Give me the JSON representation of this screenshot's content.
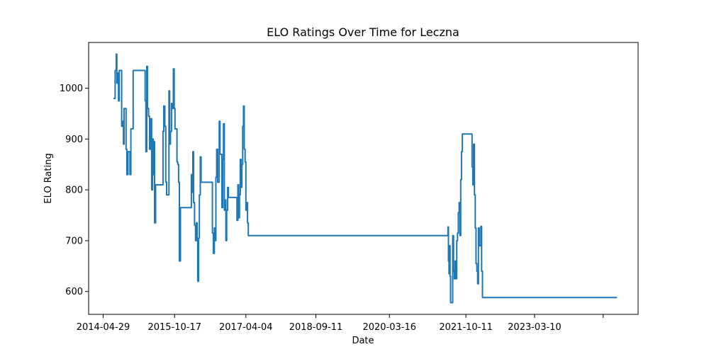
{
  "chart_data": {
    "type": "line",
    "title": "ELO Ratings Over Time for Leczna",
    "xlabel": "Date",
    "ylabel": "ELO Rating",
    "grid": false,
    "x_axis_type": "date",
    "xlim": [
      "2014-01-10",
      "2025-04-25"
    ],
    "ylim": [
      555,
      1090
    ],
    "x_ticks": [
      "2014-04-29",
      "2015-10-17",
      "2017-04-04",
      "2018-09-11",
      "2020-03-16",
      "2021-10-11",
      "2023-03-10",
      ""
    ],
    "y_ticks": [
      600,
      700,
      800,
      900,
      1000
    ],
    "series": [
      {
        "color": "#1f77b4",
        "points": [
          [
            "2014-07-15",
            980
          ],
          [
            "2014-07-25",
            980
          ],
          [
            "2014-07-28",
            1035
          ],
          [
            "2014-08-05",
            1067
          ],
          [
            "2014-08-10",
            1010
          ],
          [
            "2014-08-18",
            1030
          ],
          [
            "2014-08-22",
            975
          ],
          [
            "2014-08-28",
            1035
          ],
          [
            "2014-09-10",
            1035
          ],
          [
            "2014-09-15",
            925
          ],
          [
            "2014-09-22",
            935
          ],
          [
            "2014-09-28",
            890
          ],
          [
            "2014-10-03",
            960
          ],
          [
            "2014-10-12",
            960
          ],
          [
            "2014-10-18",
            880
          ],
          [
            "2014-10-24",
            830
          ],
          [
            "2014-11-01",
            875
          ],
          [
            "2014-11-10",
            875
          ],
          [
            "2014-11-16",
            830
          ],
          [
            "2014-11-23",
            920
          ],
          [
            "2014-12-01",
            920
          ],
          [
            "2014-12-10",
            1035
          ],
          [
            "2015-03-05",
            1035
          ],
          [
            "2015-03-10",
            975
          ],
          [
            "2015-03-16",
            875
          ],
          [
            "2015-03-22",
            1043
          ],
          [
            "2015-03-28",
            960
          ],
          [
            "2015-04-05",
            945
          ],
          [
            "2015-04-12",
            880
          ],
          [
            "2015-04-20",
            940
          ],
          [
            "2015-04-28",
            800
          ],
          [
            "2015-05-05",
            900
          ],
          [
            "2015-05-10",
            830
          ],
          [
            "2015-05-16",
            895
          ],
          [
            "2015-05-20",
            735
          ],
          [
            "2015-05-28",
            810
          ],
          [
            "2015-07-15",
            810
          ],
          [
            "2015-07-22",
            915
          ],
          [
            "2015-07-28",
            965
          ],
          [
            "2015-08-05",
            925
          ],
          [
            "2015-08-12",
            815
          ],
          [
            "2015-08-18",
            790
          ],
          [
            "2015-08-30",
            790
          ],
          [
            "2015-09-05",
            995
          ],
          [
            "2015-09-10",
            890
          ],
          [
            "2015-09-16",
            915
          ],
          [
            "2015-09-24",
            970
          ],
          [
            "2015-10-01",
            960
          ],
          [
            "2015-10-08",
            1038
          ],
          [
            "2015-10-14",
            960
          ],
          [
            "2015-10-20",
            920
          ],
          [
            "2015-10-28",
            920
          ],
          [
            "2015-11-04",
            855
          ],
          [
            "2015-11-10",
            850
          ],
          [
            "2015-11-16",
            815
          ],
          [
            "2015-11-22",
            660
          ],
          [
            "2015-11-30",
            765
          ],
          [
            "2016-02-15",
            765
          ],
          [
            "2016-02-20",
            830
          ],
          [
            "2016-02-25",
            795
          ],
          [
            "2016-03-02",
            875
          ],
          [
            "2016-03-08",
            775
          ],
          [
            "2016-03-15",
            730
          ],
          [
            "2016-03-22",
            700
          ],
          [
            "2016-03-28",
            735
          ],
          [
            "2016-04-03",
            700
          ],
          [
            "2016-04-08",
            620
          ],
          [
            "2016-04-14",
            705
          ],
          [
            "2016-04-20",
            790
          ],
          [
            "2016-04-27",
            865
          ],
          [
            "2016-05-03",
            815
          ],
          [
            "2016-07-20",
            815
          ],
          [
            "2016-07-27",
            715
          ],
          [
            "2016-08-03",
            675
          ],
          [
            "2016-08-10",
            725
          ],
          [
            "2016-08-16",
            700
          ],
          [
            "2016-08-22",
            825
          ],
          [
            "2016-08-28",
            880
          ],
          [
            "2016-09-04",
            815
          ],
          [
            "2016-09-10",
            815
          ],
          [
            "2016-09-16",
            935
          ],
          [
            "2016-09-22",
            870
          ],
          [
            "2016-09-30",
            870
          ],
          [
            "2016-10-06",
            765
          ],
          [
            "2016-10-12",
            860
          ],
          [
            "2016-10-18",
            930
          ],
          [
            "2016-10-24",
            760
          ],
          [
            "2016-10-30",
            780
          ],
          [
            "2016-11-05",
            700
          ],
          [
            "2016-11-11",
            760
          ],
          [
            "2016-11-18",
            805
          ],
          [
            "2016-11-24",
            785
          ],
          [
            "2017-01-20",
            785
          ],
          [
            "2017-01-27",
            740
          ],
          [
            "2017-02-03",
            810
          ],
          [
            "2017-02-09",
            745
          ],
          [
            "2017-02-15",
            790
          ],
          [
            "2017-02-21",
            860
          ],
          [
            "2017-02-27",
            805
          ],
          [
            "2017-03-05",
            850
          ],
          [
            "2017-03-11",
            925
          ],
          [
            "2017-03-17",
            965
          ],
          [
            "2017-03-23",
            880
          ],
          [
            "2017-03-29",
            855
          ],
          [
            "2017-04-04",
            760
          ],
          [
            "2017-04-10",
            775
          ],
          [
            "2017-04-16",
            735
          ],
          [
            "2017-04-22",
            710
          ],
          [
            "2021-05-25",
            710
          ],
          [
            "2021-05-29",
            727
          ],
          [
            "2021-06-02",
            660
          ],
          [
            "2021-06-06",
            635
          ],
          [
            "2021-06-10",
            690
          ],
          [
            "2021-06-14",
            630
          ],
          [
            "2021-06-18",
            578
          ],
          [
            "2021-06-28",
            578
          ],
          [
            "2021-07-04",
            710
          ],
          [
            "2021-07-10",
            640
          ],
          [
            "2021-07-16",
            625
          ],
          [
            "2021-07-22",
            660
          ],
          [
            "2021-07-28",
            625
          ],
          [
            "2021-08-03",
            700
          ],
          [
            "2021-08-09",
            715
          ],
          [
            "2021-08-15",
            755
          ],
          [
            "2021-08-21",
            775
          ],
          [
            "2021-08-27",
            710
          ],
          [
            "2021-09-02",
            820
          ],
          [
            "2021-09-08",
            875
          ],
          [
            "2021-09-14",
            910
          ],
          [
            "2021-11-20",
            910
          ],
          [
            "2021-11-26",
            845
          ],
          [
            "2021-12-02",
            810
          ],
          [
            "2021-12-08",
            890
          ],
          [
            "2021-12-14",
            790
          ],
          [
            "2021-12-20",
            725
          ],
          [
            "2021-12-26",
            655
          ],
          [
            "2022-01-01",
            640
          ],
          [
            "2022-01-07",
            615
          ],
          [
            "2022-01-13",
            725
          ],
          [
            "2022-01-19",
            690
          ],
          [
            "2022-01-25",
            690
          ],
          [
            "2022-01-31",
            728
          ],
          [
            "2022-02-06",
            640
          ],
          [
            "2022-02-12",
            588
          ],
          [
            "2024-11-18",
            588
          ]
        ]
      }
    ]
  }
}
